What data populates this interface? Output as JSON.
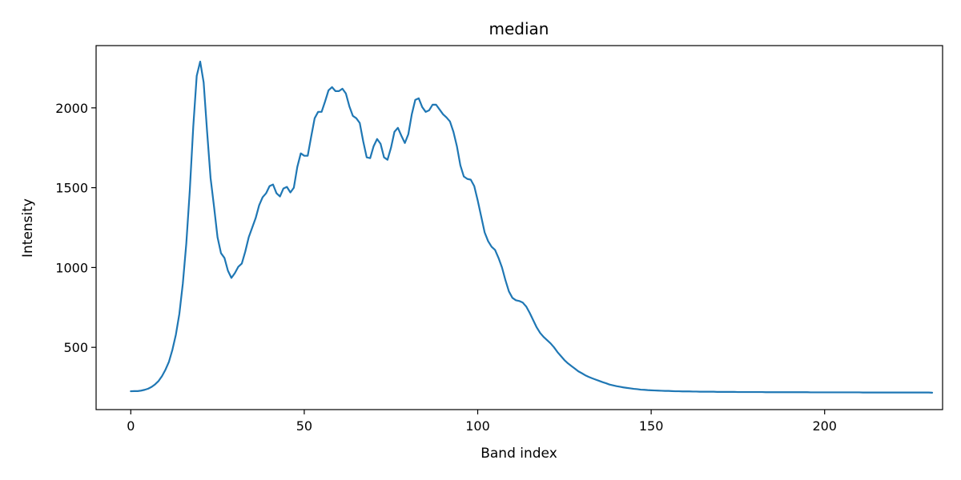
{
  "chart_data": {
    "type": "line",
    "title": "median",
    "xlabel": "Band index",
    "ylabel": "Intensity",
    "xlim": [
      -10,
      234
    ],
    "ylim": [
      110,
      2390
    ],
    "xticks": [
      0,
      50,
      100,
      150,
      200
    ],
    "yticks": [
      500,
      1000,
      1500,
      2000
    ],
    "grid": false,
    "line_color": "#1f77b4",
    "series": [
      {
        "values": [
          225,
          226,
          226,
          229,
          234,
          241,
          252,
          268,
          289,
          320,
          360,
          410,
          485,
          580,
          710,
          900,
          1150,
          1480,
          1880,
          2200,
          2290,
          2160,
          1850,
          1560,
          1380,
          1190,
          1090,
          1060,
          980,
          935,
          965,
          1005,
          1025,
          1100,
          1190,
          1250,
          1310,
          1390,
          1440,
          1465,
          1510,
          1520,
          1465,
          1445,
          1495,
          1505,
          1470,
          1500,
          1630,
          1715,
          1700,
          1700,
          1820,
          1935,
          1975,
          1975,
          2040,
          2110,
          2130,
          2105,
          2105,
          2120,
          2090,
          2010,
          1950,
          1935,
          1905,
          1790,
          1690,
          1685,
          1760,
          1805,
          1775,
          1690,
          1675,
          1750,
          1850,
          1875,
          1825,
          1780,
          1835,
          1960,
          2050,
          2060,
          2005,
          1975,
          1985,
          2020,
          2020,
          1990,
          1960,
          1940,
          1915,
          1850,
          1760,
          1640,
          1570,
          1555,
          1550,
          1510,
          1420,
          1320,
          1220,
          1165,
          1130,
          1110,
          1060,
          1000,
          920,
          850,
          810,
          795,
          790,
          780,
          755,
          715,
          670,
          625,
          590,
          565,
          545,
          525,
          500,
          470,
          445,
          420,
          400,
          383,
          367,
          350,
          338,
          325,
          315,
          306,
          298,
          290,
          282,
          275,
          267,
          262,
          257,
          253,
          249,
          246,
          243,
          240,
          238,
          235,
          234,
          232,
          231,
          230,
          229,
          228,
          227,
          227,
          226,
          225,
          225,
          224,
          224,
          224,
          223,
          223,
          222,
          222,
          222,
          222,
          222,
          221,
          221,
          221,
          221,
          221,
          221,
          220,
          220,
          220,
          220,
          220,
          220,
          220,
          220,
          219,
          219,
          219,
          219,
          219,
          219,
          219,
          219,
          219,
          219,
          219,
          219,
          219,
          218,
          218,
          218,
          218,
          218,
          218,
          218,
          218,
          218,
          218,
          218,
          218,
          218,
          218,
          218,
          217,
          217,
          217,
          217,
          217,
          217,
          217,
          217,
          217,
          217,
          217,
          217,
          217,
          217,
          217,
          217,
          217,
          217,
          217,
          217,
          216
        ]
      }
    ]
  }
}
